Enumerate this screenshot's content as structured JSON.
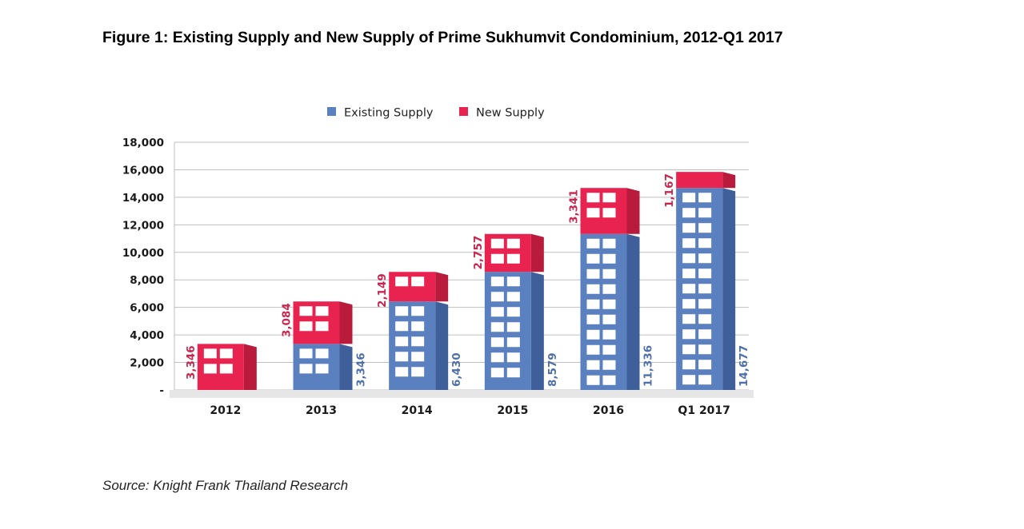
{
  "title": "Figure 1: Existing Supply and New Supply of Prime Sukhumvit Condominium, 2012-Q1 2017",
  "source": "Source: Knight Frank Thailand Research",
  "colors": {
    "existing_front": "#5a80c0",
    "existing_side": "#3e5f99",
    "new_front": "#e8234f",
    "new_side": "#b81b3c",
    "window": "#ffffff",
    "existing_label": "#4f6fa8",
    "new_label": "#c8264f",
    "grid": "#bfbfbf"
  },
  "chart_data": {
    "type": "bar",
    "stacked": true,
    "categories": [
      "2012",
      "2013",
      "2014",
      "2015",
      "2016",
      "Q1 2017"
    ],
    "series": [
      {
        "name": "Existing Supply",
        "values": [
          0,
          3346,
          6430,
          8579,
          11336,
          14677
        ],
        "labels": [
          "",
          "3,346",
          "6,430",
          "8,579",
          "11,336",
          "14,677"
        ]
      },
      {
        "name": "New Supply",
        "values": [
          3346,
          3084,
          2149,
          2757,
          3341,
          1167
        ],
        "labels": [
          "3,346",
          "3,084",
          "2,149",
          "2,757",
          "3,341",
          "1,167"
        ]
      }
    ],
    "ylim": [
      0,
      18000
    ],
    "yticks": [
      0,
      2000,
      4000,
      6000,
      8000,
      10000,
      12000,
      14000,
      16000,
      18000
    ],
    "ytick_labels": [
      "-",
      "2,000",
      "4,000",
      "6,000",
      "8,000",
      "10,000",
      "12,000",
      "14,000",
      "16,000",
      "18,000"
    ],
    "grid": true,
    "legend": "top-center",
    "style": "3d building bars with windows"
  }
}
